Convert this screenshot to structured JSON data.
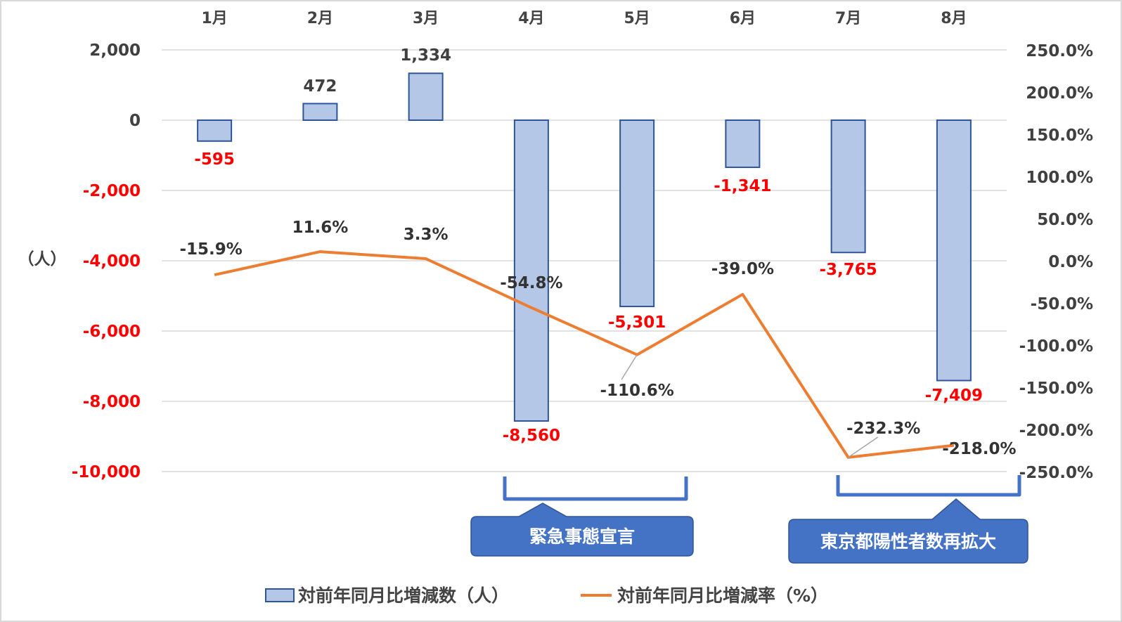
{
  "chart_data": {
    "type": "bar",
    "categories": [
      "1月",
      "2月",
      "3月",
      "4月",
      "5月",
      "6月",
      "7月",
      "8月"
    ],
    "series": [
      {
        "name": "対前年同月比増減数（人）",
        "type": "bar",
        "axis": "left",
        "values": [
          -595,
          472,
          1334,
          -8560,
          -5301,
          -1341,
          -3765,
          -7409
        ],
        "labels": [
          "-595",
          "472",
          "1,334",
          "-8,560",
          "-5,301",
          "-1,341",
          "-3,765",
          "-7,409"
        ],
        "color": "#b4c7e7",
        "border_color": "#2f5597"
      },
      {
        "name": "対前年同月比増減率（%）",
        "type": "line",
        "axis": "right",
        "values": [
          -15.9,
          11.6,
          3.3,
          -54.8,
          -110.6,
          -39.0,
          -232.3,
          -218.0
        ],
        "labels": [
          "-15.9%",
          "11.6%",
          "3.3%",
          "-54.8%",
          "-110.6%",
          "-39.0%",
          "-232.3%",
          "-218.0%"
        ],
        "color": "#ed7d31"
      }
    ],
    "left_axis": {
      "title": "（人）",
      "ylim": [
        -10000,
        2000
      ],
      "ticks": [
        2000,
        0,
        -2000,
        -4000,
        -6000,
        -8000,
        -10000
      ],
      "tick_labels": [
        "2,000",
        "0",
        "-2,000",
        "-4,000",
        "-6,000",
        "-8,000",
        "-10,000"
      ]
    },
    "right_axis": {
      "ylim": [
        -250,
        250
      ],
      "ticks": [
        250,
        200,
        150,
        100,
        50,
        0,
        -50,
        -100,
        -150,
        -200,
        -250
      ],
      "tick_labels": [
        "250.0%",
        "200.0%",
        "150.0%",
        "100.0%",
        "50.0%",
        "0.0%",
        "-50.0%",
        "-100.0%",
        "-150.0%",
        "-200.0%",
        "-250.0%"
      ]
    },
    "grid": true,
    "legend": "bottom",
    "positive_label_color": "#404040",
    "negative_label_color": "#ff0000",
    "annotations": [
      {
        "text": "緊急事態宣言",
        "span": [
          "4月",
          "5月"
        ]
      },
      {
        "text": "東京都陽性者数再拡大",
        "span": [
          "7月",
          "8月"
        ]
      }
    ],
    "annotation_color": "#4472c4"
  }
}
